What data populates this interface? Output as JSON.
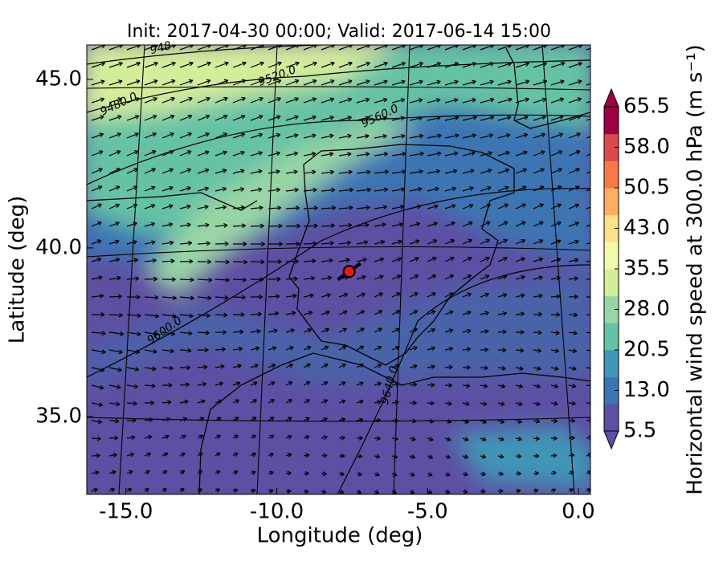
{
  "chart_data": {
    "type": "map",
    "title": "Init: 2017-04-30 00:00; Valid: 2017-06-14 15:00",
    "xlabel": "Longitude (deg)",
    "ylabel": "Latitude (deg)",
    "xlim": [
      -16.3,
      0.4
    ],
    "ylim": [
      32.69,
      46.02
    ],
    "xticks": [
      {
        "value": -15,
        "label": "-15.0"
      },
      {
        "value": -10,
        "label": "-10.0"
      },
      {
        "value": -5,
        "label": "-5.0"
      },
      {
        "value": 0,
        "label": "0.0"
      }
    ],
    "yticks": [
      {
        "value": 35,
        "label": "35.0"
      },
      {
        "value": 40,
        "label": "40.0"
      },
      {
        "value": 45,
        "label": "45.0"
      }
    ],
    "contour_labels": [
      "948",
      "9480.0",
      "9520.0",
      "9560.0",
      "9600.0",
      "9640.0"
    ],
    "marker": {
      "lon": -7.6,
      "lat": 39.3,
      "color": "#e31a1c"
    },
    "colorbar": {
      "label": "Horizontal wind speed at 300.0 hPa (m s⁻¹)",
      "lim": [
        5.5,
        65.5
      ],
      "ticks": [
        5.5,
        {
          "value": 13,
          "label": "13.0"
        },
        20.5,
        {
          "value": 28,
          "label": "28.0"
        },
        35.5,
        {
          "value": 43,
          "label": "43.0"
        },
        50.5,
        {
          "value": 58,
          "label": "58.0"
        },
        65.5
      ],
      "colors": [
        "#5e4fa2",
        "#3d74b3",
        "#3f96b7",
        "#66c2a5",
        "#99d5a4",
        "#d4ed9b",
        "#f2f9a9",
        "#fee08b",
        "#fdae61",
        "#f67a49",
        "#dc494c",
        "#9e0142"
      ]
    }
  }
}
